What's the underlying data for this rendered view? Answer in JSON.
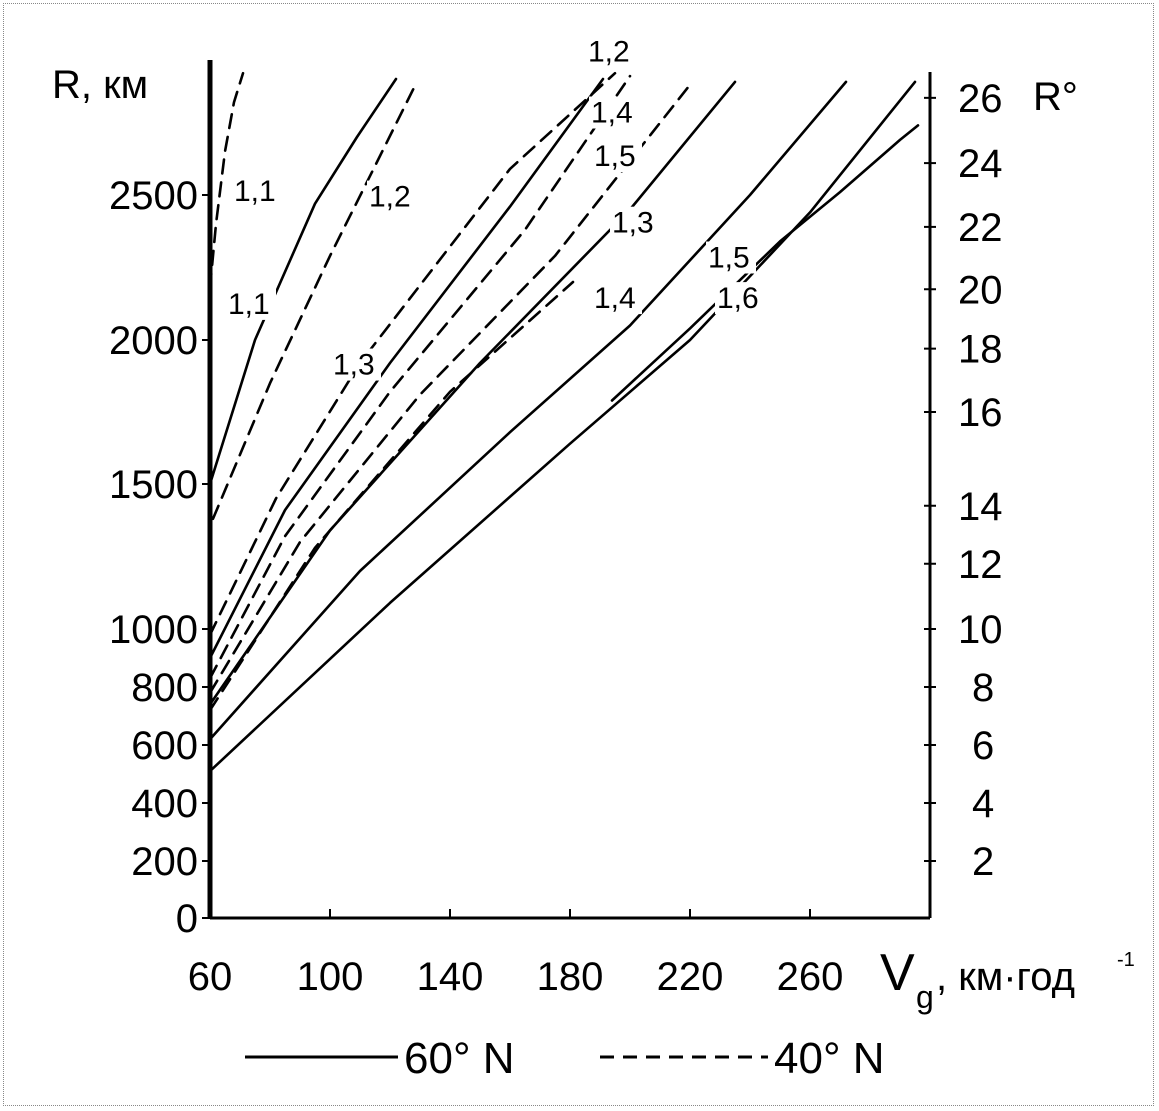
{
  "chart_data": {
    "type": "line",
    "ylabel": "R, км",
    "ylabel_right": "R°",
    "xlabel_main": "V",
    "xlabel_sub": "g",
    "xlabel_unit": ", км·год",
    "xlabel_exp": "-1",
    "xlim": [
      60,
      300
    ],
    "ylim": [
      0,
      2950
    ],
    "x_ticks": [
      60,
      100,
      140,
      180,
      220,
      260
    ],
    "y_ticks": [
      0,
      200,
      400,
      600,
      800,
      1000,
      1500,
      2000,
      2500
    ],
    "right_ticks": [
      2,
      4,
      6,
      8,
      10,
      12,
      14,
      16,
      18,
      20,
      22,
      24,
      26
    ],
    "right_ticks_km": [
      200,
      400,
      600,
      800,
      1000,
      1225,
      1425,
      1750,
      1970,
      2175,
      2390,
      2610,
      2835
    ],
    "series": [
      {
        "label": "1,1",
        "style": "solid",
        "x": [
          60,
          75,
          95,
          109,
          122
        ],
        "y": [
          1500,
          2000,
          2470,
          2700,
          2900
        ]
      },
      {
        "label": "1,1",
        "style": "dashed",
        "x": [
          60,
          62,
          65,
          68,
          71
        ],
        "y": [
          2180,
          2400,
          2650,
          2820,
          2920
        ]
      },
      {
        "label": "1,2",
        "style": "dashed",
        "x": [
          61,
          80,
          100,
          115,
          128
        ],
        "y": [
          1380,
          1850,
          2290,
          2600,
          2870
        ]
      },
      {
        "label": "1,3",
        "style": "dashed",
        "x": [
          60,
          82,
          110,
          160,
          195
        ],
        "y": [
          980,
          1450,
          1920,
          2590,
          2920
        ]
      },
      {
        "label": "1,2",
        "style": "solid",
        "x": [
          60,
          85,
          120,
          160,
          191
        ],
        "y": [
          900,
          1410,
          1920,
          2460,
          2900
        ]
      },
      {
        "label": "1,2",
        "style": "dashed",
        "x": [
          60,
          85,
          120,
          165,
          200
        ],
        "y": [
          830,
          1320,
          1820,
          2380,
          2910
        ]
      },
      {
        "label": "1,4",
        "style": "dashed",
        "x": [
          60,
          90,
          130,
          175,
          220
        ],
        "y": [
          780,
          1300,
          1810,
          2290,
          2880
        ]
      },
      {
        "label": "1,5",
        "style": "dashed",
        "x": [
          60,
          95,
          140,
          181
        ],
        "y": [
          720,
          1280,
          1820,
          2200
        ]
      },
      {
        "label": "1,3",
        "style": "solid",
        "x": [
          60,
          100,
          150,
          200,
          235
        ],
        "y": [
          740,
          1340,
          1920,
          2450,
          2890
        ]
      },
      {
        "label": "1,4",
        "style": "solid",
        "x": [
          60,
          110,
          160,
          200,
          240,
          272
        ],
        "y": [
          620,
          1200,
          1680,
          2050,
          2500,
          2890
        ]
      },
      {
        "label": "1,5",
        "style": "solid",
        "x": [
          60,
          120,
          180,
          220,
          260,
          295
        ],
        "y": [
          510,
          1090,
          1640,
          2000,
          2440,
          2890
        ]
      },
      {
        "label": "1,6",
        "style": "solid",
        "x": [
          194,
          220,
          250,
          270,
          290,
          296
        ],
        "y": [
          1790,
          2040,
          2340,
          2510,
          2690,
          2740
        ]
      }
    ],
    "curve_labels": [
      {
        "text": "1,1",
        "x": 68,
        "y": 2480
      },
      {
        "text": "1,2",
        "x": 113,
        "y": 2460
      },
      {
        "text": "1,1",
        "x": 66,
        "y": 2090
      },
      {
        "text": "1,3",
        "x": 101,
        "y": 1880
      },
      {
        "text": "1,2",
        "x": 186,
        "y": 2960
      },
      {
        "text": "1,4",
        "x": 187,
        "y": 2750
      },
      {
        "text": "1,5",
        "x": 188,
        "y": 2600
      },
      {
        "text": "1,3",
        "x": 194,
        "y": 2370
      },
      {
        "text": "1,5",
        "x": 226,
        "y": 2250
      },
      {
        "text": "1,4",
        "x": 188,
        "y": 2110
      },
      {
        "text": "1,6",
        "x": 229,
        "y": 2110
      }
    ],
    "legend": [
      {
        "label": "60° N",
        "style": "solid"
      },
      {
        "label": "40° N",
        "style": "dashed"
      }
    ],
    "legend_position": "bottom"
  }
}
